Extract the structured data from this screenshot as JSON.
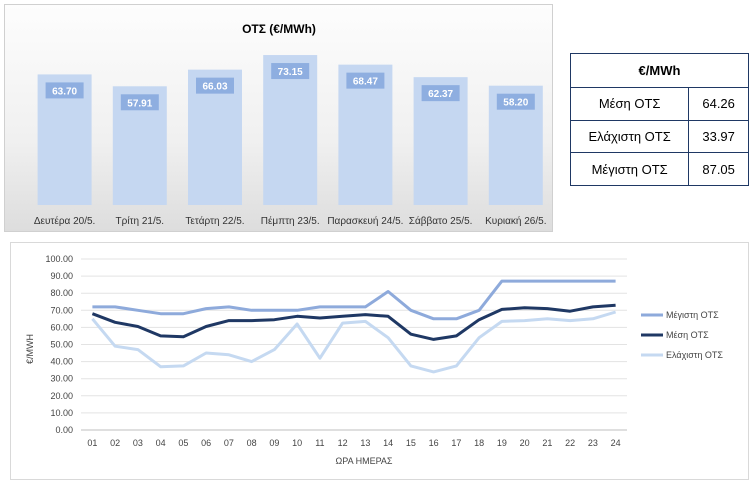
{
  "chart_data": [
    {
      "type": "bar",
      "title": "ΟΤΣ (€/MWh)",
      "categories": [
        "Δευτέρα 20/5.",
        "Τρίτη 21/5.",
        "Τετάρτη 22/5.",
        "Πέμπτη 23/5.",
        "Παρασκευή 24/5.",
        "Σάββατο 25/5.",
        "Κυριακή 26/5."
      ],
      "values": [
        63.7,
        57.91,
        66.03,
        73.15,
        68.47,
        62.37,
        58.2
      ],
      "value_labels": [
        "63.70",
        "57.91",
        "66.03",
        "73.15",
        "68.47",
        "62.37",
        "58.20"
      ],
      "ylim": [
        0,
        80
      ],
      "bar_color": "#c5d7f1",
      "label_bg": "#8eaee0",
      "grid": false
    },
    {
      "type": "table",
      "header": "€/MWh",
      "rows": [
        {
          "label": "Μέση ΟΤΣ",
          "value": "64.26"
        },
        {
          "label": "Ελάχιστη ΟΤΣ",
          "value": "33.97"
        },
        {
          "label": "Μέγιστη ΟΤΣ",
          "value": "87.05"
        }
      ],
      "border_color": "#1f3864"
    },
    {
      "type": "line",
      "xlabel": "ΩΡΑ ΗΜΕΡΑΣ",
      "ylabel": "€/MWH",
      "ylim": [
        0,
        100
      ],
      "yticks": [
        "0.00",
        "10.00",
        "20.00",
        "30.00",
        "40.00",
        "50.00",
        "60.00",
        "70.00",
        "80.00",
        "90.00",
        "100.00"
      ],
      "x": [
        "01",
        "02",
        "03",
        "04",
        "05",
        "06",
        "07",
        "08",
        "09",
        "10",
        "11",
        "12",
        "13",
        "14",
        "15",
        "16",
        "17",
        "18",
        "19",
        "20",
        "21",
        "22",
        "23",
        "24"
      ],
      "grid": true,
      "legend": "right",
      "series": [
        {
          "name": "Μέγιστη ΟΤΣ",
          "color": "#8eaadb",
          "values": [
            72.0,
            72.0,
            70.0,
            68.0,
            68.0,
            71.0,
            72.0,
            70.0,
            70.0,
            70.0,
            72.0,
            72.0,
            72.0,
            81.0,
            70.0,
            65.0,
            65.0,
            70.0,
            87.05,
            87.05,
            87.05,
            87.05,
            87.05,
            87.05
          ]
        },
        {
          "name": "Μέση ΟΤΣ",
          "color": "#1f3864",
          "values": [
            68.0,
            63.0,
            60.5,
            55.0,
            54.5,
            60.5,
            64.0,
            64.0,
            64.5,
            66.5,
            65.5,
            66.5,
            67.5,
            66.5,
            56.0,
            53.0,
            55.0,
            64.5,
            70.5,
            71.5,
            71.0,
            69.5,
            72.0,
            73.0
          ]
        },
        {
          "name": "Ελάχιστη ΟΤΣ",
          "color": "#c5d9f1",
          "values": [
            65.0,
            49.0,
            47.0,
            37.0,
            37.5,
            45.0,
            44.0,
            40.0,
            47.0,
            62.0,
            42.0,
            62.5,
            63.5,
            54.0,
            37.5,
            33.97,
            37.5,
            54.0,
            63.5,
            64.0,
            65.0,
            64.0,
            65.0,
            69.0
          ]
        }
      ]
    }
  ]
}
